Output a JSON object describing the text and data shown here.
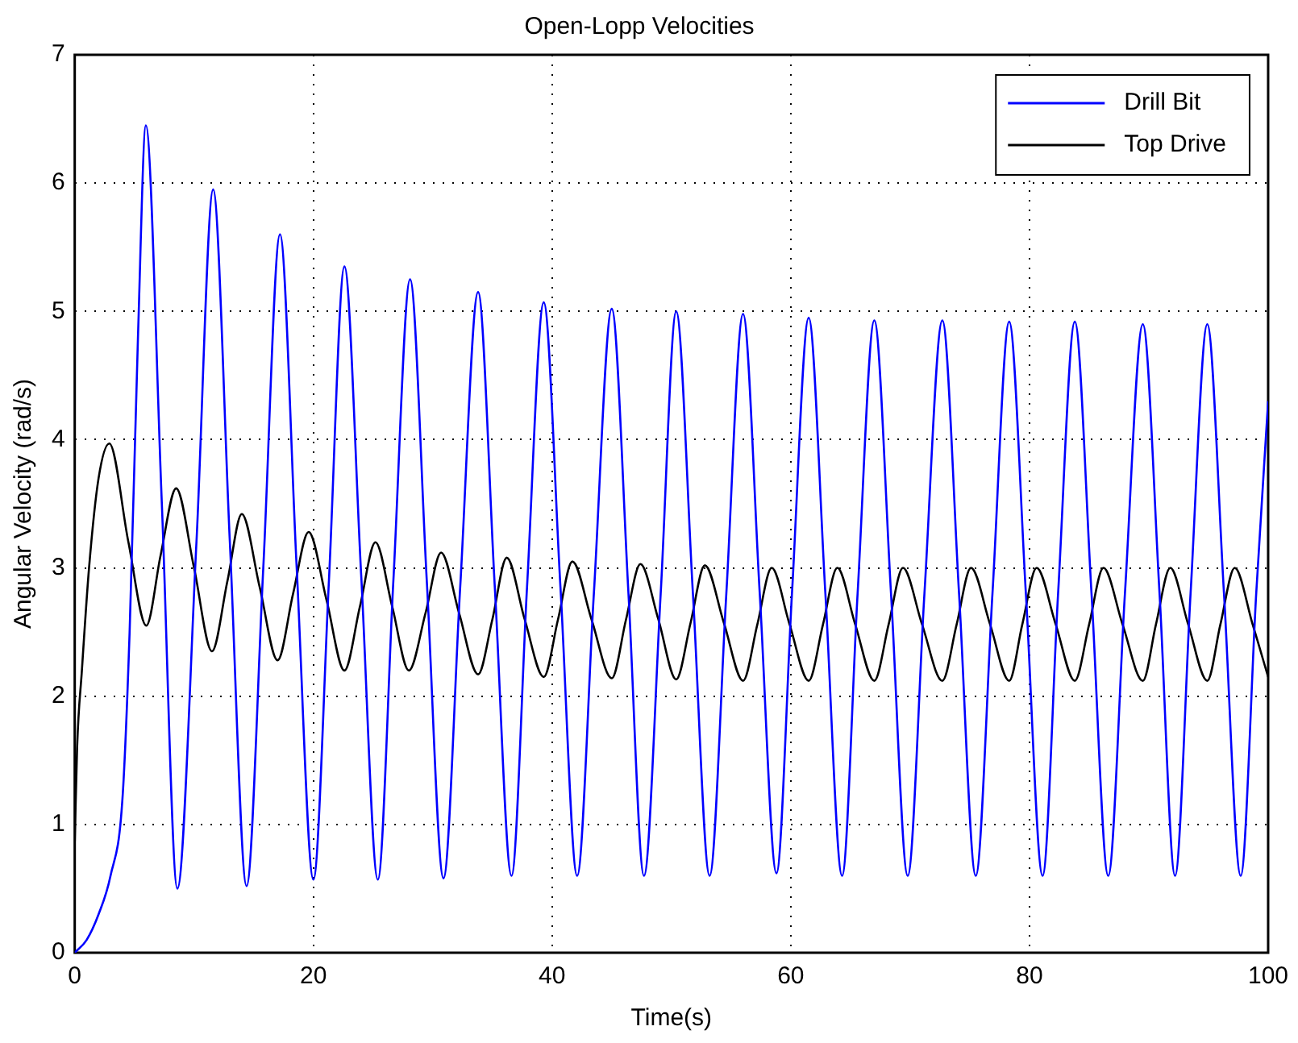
{
  "chart_data": {
    "type": "line",
    "title": "Open-Lopp Velocities",
    "xlabel": "Time(s)",
    "ylabel": "Angular Velocity (rad/s)",
    "xlim": [
      0,
      100
    ],
    "xticks": [
      0,
      20,
      40,
      60,
      80,
      100
    ],
    "ylim": [
      0,
      7
    ],
    "yticks": [
      0,
      1,
      2,
      3,
      4,
      5,
      6,
      7
    ],
    "grid": true,
    "legend": "top right",
    "marker": "none",
    "line_style": "solid",
    "series": [
      {
        "name": "Drill Bit",
        "color": "#0000ff",
        "x": [
          0,
          1,
          2,
          3,
          4,
          4.6,
          5.3,
          5.96,
          7.3,
          8.6,
          10.2,
          11.6,
          13.0,
          14.4,
          15.8,
          17.2,
          18.6,
          20.0,
          21.3,
          22.6,
          24.0,
          25.4,
          26.7,
          28.1,
          29.5,
          30.9,
          32.3,
          33.8,
          35.2,
          36.6,
          37.9,
          39.3,
          40.7,
          42.1,
          43.5,
          45.0,
          46.4,
          47.7,
          49.1,
          50.4,
          51.8,
          53.2,
          54.6,
          56.0,
          57.4,
          58.8,
          60.1,
          61.5,
          62.9,
          64.3,
          65.6,
          67.0,
          68.4,
          69.8,
          71.2,
          72.7,
          74.1,
          75.5,
          76.9,
          78.3,
          79.7,
          81.1,
          82.4,
          83.8,
          85.2,
          86.6,
          88.0,
          89.5,
          90.9,
          92.2,
          93.5,
          94.9,
          96.3,
          97.7,
          99.0,
          100
        ],
        "values": [
          0,
          0.1,
          0.3,
          0.6,
          1.2,
          2.5,
          4.8,
          6.45,
          3.5,
          0.5,
          3.2,
          5.95,
          3.2,
          0.52,
          3.0,
          5.6,
          3.0,
          0.57,
          2.9,
          5.35,
          2.95,
          0.57,
          2.9,
          5.25,
          2.9,
          0.58,
          2.85,
          5.15,
          2.85,
          0.6,
          2.85,
          5.07,
          2.85,
          0.6,
          2.8,
          5.02,
          2.8,
          0.6,
          2.8,
          5.0,
          2.8,
          0.6,
          2.8,
          4.98,
          2.8,
          0.62,
          2.8,
          4.95,
          2.8,
          0.6,
          2.8,
          4.93,
          2.8,
          0.6,
          2.8,
          4.93,
          2.8,
          0.6,
          2.8,
          4.92,
          2.8,
          0.6,
          2.8,
          4.92,
          2.8,
          0.6,
          2.8,
          4.9,
          2.8,
          0.6,
          2.8,
          4.9,
          2.8,
          0.6,
          2.8,
          4.3
        ]
      },
      {
        "name": "Top Drive",
        "color": "#000000",
        "x": [
          0,
          0.2,
          0.6,
          1.2,
          2.0,
          2.9,
          4.5,
          6.0,
          7.2,
          8.5,
          10.0,
          11.5,
          12.8,
          14.0,
          15.5,
          17.0,
          18.3,
          19.6,
          21.1,
          22.6,
          23.9,
          25.2,
          26.6,
          28.0,
          29.4,
          30.7,
          32.2,
          33.8,
          35.0,
          36.2,
          37.7,
          39.3,
          40.5,
          41.7,
          43.3,
          45.0,
          46.2,
          47.4,
          48.9,
          50.4,
          51.6,
          52.8,
          54.4,
          56.0,
          57.2,
          58.4,
          59.9,
          61.5,
          62.7,
          63.9,
          65.4,
          67.0,
          68.2,
          69.4,
          71.0,
          72.7,
          73.9,
          75.1,
          76.7,
          78.3,
          79.4,
          80.6,
          82.2,
          83.8,
          85.0,
          86.2,
          87.8,
          89.5,
          90.6,
          91.8,
          93.3,
          94.9,
          96.0,
          97.2,
          98.7,
          100
        ],
        "values": [
          0.85,
          1.6,
          2.2,
          3.0,
          3.7,
          3.97,
          3.2,
          2.55,
          3.1,
          3.62,
          3.0,
          2.35,
          2.9,
          3.42,
          2.85,
          2.28,
          2.8,
          3.28,
          2.75,
          2.2,
          2.7,
          3.2,
          2.7,
          2.2,
          2.65,
          3.12,
          2.65,
          2.17,
          2.6,
          3.08,
          2.6,
          2.15,
          2.6,
          3.05,
          2.6,
          2.14,
          2.6,
          3.03,
          2.6,
          2.13,
          2.57,
          3.02,
          2.57,
          2.12,
          2.56,
          3.0,
          2.56,
          2.12,
          2.56,
          3.0,
          2.56,
          2.12,
          2.56,
          3.0,
          2.56,
          2.12,
          2.56,
          3.0,
          2.56,
          2.12,
          2.56,
          3.0,
          2.56,
          2.12,
          2.56,
          3.0,
          2.56,
          2.12,
          2.56,
          3.0,
          2.56,
          2.12,
          2.56,
          3.0,
          2.56,
          2.15
        ]
      }
    ]
  }
}
